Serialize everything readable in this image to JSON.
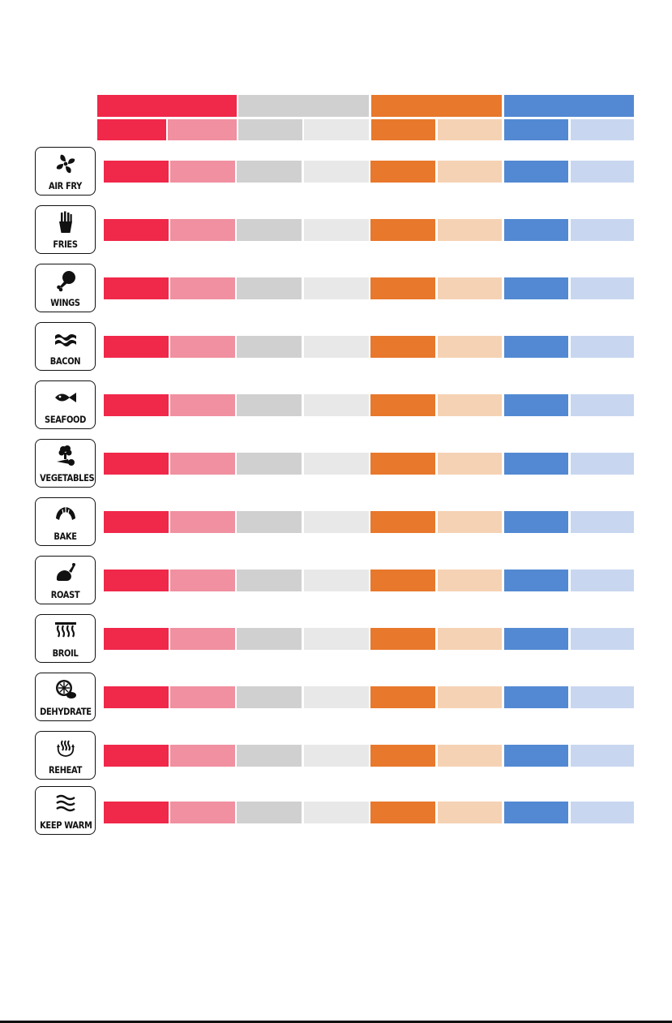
{
  "colors": {
    "red": "#f0284a",
    "pink": "#f090a0",
    "gray": "#d0d0d0",
    "light_gray": "#e8e8e8",
    "orange": "#e8782c",
    "peach": "#f5d2b4",
    "blue": "#5289d2",
    "light_blue": "#c8d6f0"
  },
  "functions": [
    {
      "label": "AIR FRY",
      "icon": "fan-icon"
    },
    {
      "label": "FRIES",
      "icon": "fries-icon"
    },
    {
      "label": "WINGS",
      "icon": "drumstick-icon"
    },
    {
      "label": "BACON",
      "icon": "bacon-icon"
    },
    {
      "label": "SEAFOOD",
      "icon": "fish-icon"
    },
    {
      "label": "VEGETABLES",
      "icon": "vegetables-icon"
    },
    {
      "label": "BAKE",
      "icon": "croissant-icon"
    },
    {
      "label": "ROAST",
      "icon": "turkey-icon"
    },
    {
      "label": "BROIL",
      "icon": "heating-element-icon"
    },
    {
      "label": "DEHYDRATE",
      "icon": "citrus-slice-icon"
    },
    {
      "label": "REHEAT",
      "icon": "reheat-icon"
    },
    {
      "label": "KEEP WARM",
      "icon": "waves-icon"
    }
  ]
}
